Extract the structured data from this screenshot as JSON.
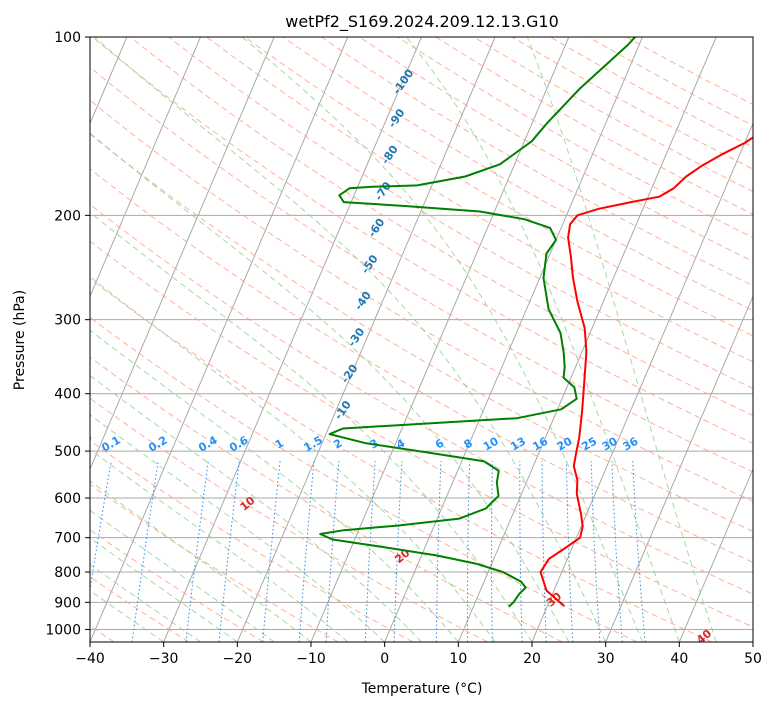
{
  "chart_data": {
    "type": "line",
    "title": "wetPf2_S169.2024.209.12.13.G10",
    "xlabel": "Temperature (°C)",
    "ylabel": "Pressure (hPa)",
    "xlim": [
      -40,
      50
    ],
    "ylim": [
      1050,
      100
    ],
    "y_scale": "log",
    "grid": true,
    "x_ticks": [
      -40,
      -30,
      -20,
      -10,
      0,
      10,
      20,
      30,
      40,
      50
    ],
    "y_ticks": [
      100,
      200,
      300,
      400,
      500,
      600,
      700,
      800,
      900,
      1000
    ],
    "x_tick_labels": [
      "−40",
      "−30",
      "−20",
      "−10",
      "0",
      "10",
      "20",
      "30",
      "40",
      "50"
    ],
    "y_tick_labels": [
      "100",
      "200",
      "300",
      "400",
      "500",
      "600",
      "700",
      "800",
      "900",
      "1000"
    ],
    "series": [
      {
        "color": "#ff0000",
        "points": [
          [
            22.3,
            913
          ],
          [
            19.0,
            860
          ],
          [
            17.1,
            800
          ],
          [
            17.5,
            760
          ],
          [
            19.0,
            730
          ],
          [
            20.5,
            700
          ],
          [
            20.2,
            670
          ],
          [
            19.3,
            640
          ],
          [
            17.5,
            590
          ],
          [
            16.8,
            560
          ],
          [
            15.5,
            530
          ],
          [
            15.0,
            500
          ],
          [
            14.6,
            475
          ],
          [
            13.5,
            430
          ],
          [
            12.3,
            390
          ],
          [
            10.6,
            340
          ],
          [
            9.0,
            310
          ],
          [
            6.5,
            280
          ],
          [
            4.5,
            255
          ],
          [
            3.0,
            235
          ],
          [
            1.5,
            218
          ],
          [
            1.0,
            207
          ],
          [
            1.5,
            200
          ],
          [
            4.0,
            195
          ],
          [
            8.0,
            190
          ],
          [
            11.5,
            186
          ],
          [
            13.0,
            180
          ],
          [
            14.0,
            172
          ],
          [
            15.5,
            165
          ],
          [
            17.5,
            158
          ],
          [
            20.0,
            151
          ],
          [
            21.0,
            147
          ],
          [
            21.5,
            140
          ],
          [
            22.5,
            133
          ],
          [
            24.0,
            127
          ],
          [
            27.0,
            121
          ],
          [
            32.0,
            115
          ],
          [
            37.0,
            109
          ],
          [
            40.5,
            102
          ],
          [
            41.0,
            100
          ]
        ]
      },
      {
        "color": "#008000",
        "points": [
          [
            14.8,
            915
          ],
          [
            15.2,
            900
          ],
          [
            15.5,
            870
          ],
          [
            16.0,
            850
          ],
          [
            15.0,
            830
          ],
          [
            12.0,
            800
          ],
          [
            8.0,
            775
          ],
          [
            2.0,
            750
          ],
          [
            -6.0,
            725
          ],
          [
            -13.0,
            705
          ],
          [
            -15.0,
            690
          ],
          [
            -12.0,
            680
          ],
          [
            -5.0,
            668
          ],
          [
            3.0,
            650
          ],
          [
            6.0,
            625
          ],
          [
            7.0,
            595
          ],
          [
            6.0,
            565
          ],
          [
            5.6,
            540
          ],
          [
            3.0,
            520
          ],
          [
            -5.0,
            503
          ],
          [
            -14.0,
            485
          ],
          [
            -19.5,
            468
          ],
          [
            -18.0,
            458
          ],
          [
            -8.0,
            450
          ],
          [
            5.0,
            440
          ],
          [
            10.5,
            425
          ],
          [
            12.0,
            408
          ],
          [
            11.0,
            390
          ],
          [
            9.0,
            376
          ],
          [
            8.5,
            360
          ],
          [
            7.5,
            340
          ],
          [
            6.0,
            316
          ],
          [
            3.0,
            288
          ],
          [
            0.5,
            255
          ],
          [
            -0.5,
            232
          ],
          [
            0.0,
            220
          ],
          [
            -1.5,
            210
          ],
          [
            -5.5,
            203
          ],
          [
            -12.0,
            197
          ],
          [
            -22.0,
            193
          ],
          [
            -31.0,
            190
          ],
          [
            -32.0,
            185
          ],
          [
            -31.0,
            180
          ],
          [
            -28.0,
            179
          ],
          [
            -25.0,
            178.5
          ],
          [
            -22.0,
            178
          ],
          [
            -16.0,
            172
          ],
          [
            -12.0,
            164
          ],
          [
            -9.0,
            150
          ],
          [
            -8.0,
            140
          ],
          [
            -5.5,
            122
          ],
          [
            -1.5,
            103
          ],
          [
            -1.0,
            100
          ]
        ]
      }
    ],
    "annotations": {
      "mixing_ratio_labels": [
        "0.1",
        "0.2",
        "0.4",
        "0.6",
        "1",
        "1.5",
        "2",
        "3",
        "4",
        "6",
        "8",
        "10",
        "13",
        "16",
        "20",
        "25",
        "30",
        "36"
      ],
      "moist_adiabat_labels": [
        "-100",
        "-90",
        "-80",
        "-70",
        "-60",
        "-50",
        "-40",
        "-30",
        "-20",
        "-10"
      ],
      "dry_adiabat_labels": [
        "0",
        "10",
        "20",
        "30",
        "40"
      ]
    },
    "colors": {
      "isotherm": "#a9a9a9",
      "dry_adiabat": "#ff9e7f",
      "moist_adiabat": "#8fcf8f",
      "mixing_ratio": "#1e90ff",
      "moist_label": "#1f77b4",
      "dry_label": "#d62728",
      "zero_label": "#808080"
    }
  }
}
